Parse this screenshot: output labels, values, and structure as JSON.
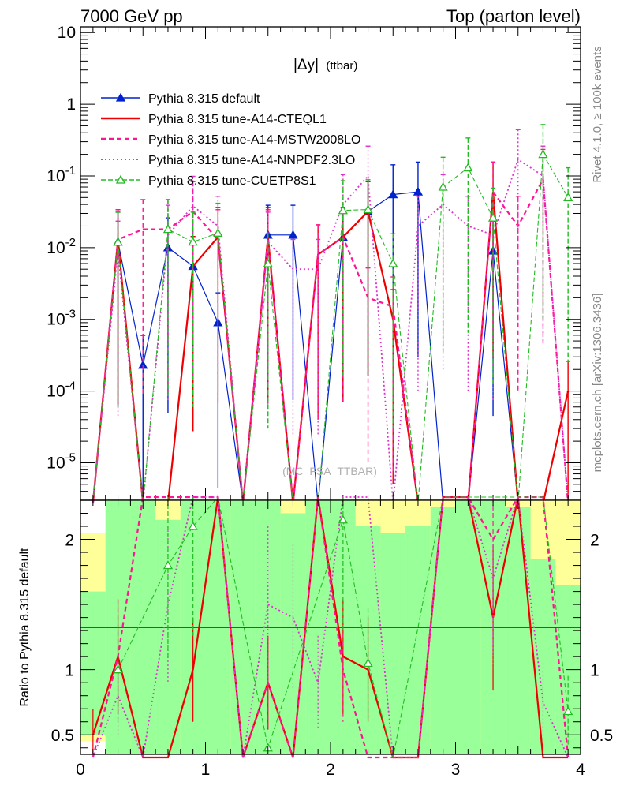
{
  "header": {
    "left": "7000 GeV pp",
    "right": "Top (parton level)"
  },
  "side_text": {
    "rivet": "Rivet 4.1.0, ≥ 100k events",
    "mcplots": "mcplots.cern.ch [arXiv:1306.3436]"
  },
  "chart_data": {
    "type": "line",
    "title": "|Δy| (ttbar)",
    "title_main": "|Δy|",
    "title_sub": "(ttbar)",
    "watermark": "(MC_FSA_TTBAR)",
    "xlabel": "",
    "ylabel_main": "",
    "ylabel_ratio": "Ratio to Pythia 8.315 default",
    "x_range": [
      0,
      4
    ],
    "y_range_log": [
      3e-06,
      12
    ],
    "ratio_range": [
      0.35,
      2.3
    ],
    "x_ticks": [
      "0",
      "1",
      "2",
      "3",
      "4"
    ],
    "x_tick_values": [
      0,
      1,
      2,
      3,
      4
    ],
    "y_ticks": [
      "10",
      "1",
      "10^-1",
      "10^-2",
      "10^-3",
      "10^-4",
      "10^-5"
    ],
    "y_tick_values": [
      10,
      1,
      0.1,
      0.01,
      0.001,
      0.0001,
      1e-05
    ],
    "ratio_ticks": [
      "2",
      "1",
      "0.5"
    ],
    "ratio_tick_values": [
      2,
      1,
      0.5
    ],
    "x": [
      0.1,
      0.3,
      0.5,
      0.7,
      0.9,
      1.1,
      1.3,
      1.5,
      1.7,
      1.9,
      2.1,
      2.3,
      2.5,
      2.7,
      2.9,
      3.1,
      3.3,
      3.5,
      3.7,
      3.9
    ],
    "series": [
      {
        "name": "Pythia 8.315 default",
        "color": "#0022cc",
        "dash": "",
        "marker": "triangle-filled",
        "values": [
          0,
          0.012,
          0.00023,
          0.01,
          0.0055,
          0.0009,
          0,
          0.015,
          0.015,
          0,
          0.014,
          0.032,
          0.055,
          0.06,
          0,
          0,
          0.009,
          0,
          0,
          0
        ],
        "ratio": [
          null,
          1,
          1,
          1,
          1,
          1,
          null,
          1,
          1,
          null,
          1,
          1,
          1,
          1,
          null,
          null,
          1,
          null,
          null,
          null
        ]
      },
      {
        "name": "Pythia 8.315 tune-A14-CTEQL1",
        "color": "#ee0000",
        "dash": "",
        "marker": "none",
        "values": [
          0,
          0.013,
          0,
          0,
          0.0055,
          0.014,
          0,
          0.014,
          0,
          0.008,
          0.014,
          0.032,
          0.001,
          0,
          0,
          0,
          0.06,
          0,
          0,
          0.0001
        ],
        "ratio": [
          0.5,
          1.1,
          0.3,
          0.3,
          1.0,
          15,
          0.3,
          0.9,
          0.3,
          5,
          1.1,
          1.0,
          0.01,
          0.3,
          5,
          5,
          1.4,
          5,
          0.3,
          0.3
        ]
      },
      {
        "name": "Pythia 8.315 tune-A14-MSTW2008LO",
        "color": "#ff1493",
        "dash": "6,4",
        "marker": "none",
        "values": [
          0,
          0.013,
          0.018,
          0.018,
          0.032,
          0.013,
          0,
          0.013,
          0,
          0.008,
          0.014,
          0.002,
          0.0015,
          0,
          0,
          0,
          0.06,
          0.02,
          0.09,
          0
        ],
        "ratio": [
          0.3,
          1.1,
          5,
          2.5,
          5,
          14,
          0.3,
          0.9,
          0.3,
          5,
          1.0,
          0.06,
          0.03,
          0.3,
          5,
          5,
          2,
          5,
          5,
          0.3
        ]
      },
      {
        "name": "Pythia 8.315 tune-A14-NNPDF2.3LO",
        "color": "#dd33cc",
        "dash": "2,3",
        "marker": "none",
        "values": [
          0,
          0.009,
          0,
          0.015,
          0.038,
          0.02,
          0,
          0.012,
          0.005,
          0.005,
          0.04,
          0.1,
          0,
          0.02,
          0.04,
          0.02,
          0.015,
          0.17,
          0.1,
          0
        ],
        "ratio": [
          0.3,
          0.8,
          0.3,
          1.5,
          2.5,
          7,
          0.3,
          1.5,
          1.4,
          0.9,
          2.5,
          3,
          0.3,
          0.3,
          5,
          5,
          1.7,
          5,
          0.75,
          0.3
        ]
      },
      {
        "name": "Pythia 8.315 tune-CUETP8S1",
        "color": "#22bb22",
        "dash": "6,3",
        "marker": "triangle-open",
        "values": [
          0,
          0.012,
          0,
          0.018,
          0.012,
          0.016,
          0,
          0.006,
          0,
          0,
          0.033,
          0.034,
          0.006,
          0,
          0.07,
          0.13,
          0.026,
          0,
          0.2,
          0.05
        ],
        "ratio": [
          null,
          1,
          null,
          1.8,
          2.1,
          18,
          null,
          0.4,
          null,
          null,
          2.15,
          1.05,
          0.1,
          null,
          5,
          5,
          2.9,
          null,
          5,
          0.68
        ]
      }
    ]
  }
}
